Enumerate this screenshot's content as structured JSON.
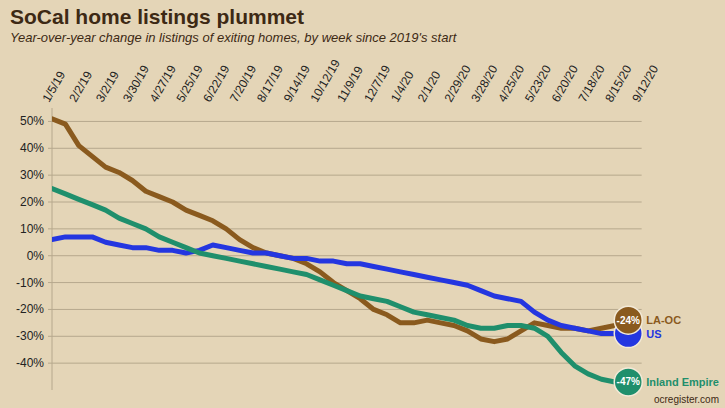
{
  "chart_data": {
    "type": "line",
    "title": "SoCal home listings plummet",
    "subtitle": "Year-over-year change in listings of exiting homes, by week since 2019's start",
    "source": "ocregister.com",
    "categories": [
      "1/5/19",
      null,
      "2/2/19",
      null,
      "3/2/19",
      null,
      "3/30/19",
      null,
      "4/27/19",
      null,
      "5/25/19",
      null,
      "6/22/19",
      null,
      "7/20/19",
      null,
      "8/17/19",
      null,
      "9/14/19",
      null,
      "10/12/19",
      null,
      "11/9/19",
      null,
      "12/7/19",
      null,
      "1/4/20",
      null,
      "2/1/20",
      null,
      "2/29/20",
      null,
      "3/28/20",
      null,
      "4/25/20",
      null,
      "5/23/20",
      null,
      "6/20/20",
      null,
      "7/18/20",
      null,
      "8/15/20",
      null,
      "9/12/20"
    ],
    "series": [
      {
        "name": "LA-OC",
        "color": "#8a5a1e",
        "values": [
          51,
          49,
          41,
          37,
          33,
          31,
          28,
          24,
          22,
          20,
          17,
          15,
          13,
          10,
          6,
          3,
          1,
          0,
          -1,
          -3,
          -6,
          -10,
          -13,
          -16,
          -20,
          -22,
          -25,
          -25,
          -24,
          -25,
          -26,
          -28,
          -31,
          -32,
          -31,
          -28,
          -25,
          -26,
          -27,
          -27,
          -28,
          -27,
          -26,
          -24,
          null
        ],
        "value_labels": [
          null,
          null,
          null,
          null,
          null,
          null,
          null,
          null,
          null,
          null,
          null,
          null,
          null,
          null,
          null,
          null,
          null,
          null,
          null,
          null,
          null,
          null,
          null,
          null,
          null,
          null,
          null,
          null,
          null,
          null,
          null,
          null,
          null,
          null,
          null,
          null,
          null,
          null,
          null,
          null,
          null,
          null,
          null,
          "-24%",
          null
        ]
      },
      {
        "name": "US",
        "color": "#2436e0",
        "values": [
          6,
          7,
          7,
          7,
          5,
          4,
          3,
          3,
          2,
          2,
          1,
          2,
          4,
          3,
          2,
          1,
          1,
          0,
          -1,
          -1,
          -2,
          -2,
          -3,
          -3,
          -4,
          -5,
          -6,
          -7,
          -8,
          -9,
          -10,
          -11,
          -13,
          -15,
          -16,
          -17,
          -21,
          -24,
          -26,
          -27,
          -28,
          -29,
          -29,
          -29,
          null
        ]
      },
      {
        "name": "Inland Empire",
        "color": "#1f8f6c",
        "values": [
          25,
          23,
          21,
          19,
          17,
          14,
          12,
          10,
          7,
          5,
          3,
          1,
          0,
          -1,
          -2,
          -3,
          -4,
          -5,
          -6,
          -7,
          -9,
          -11,
          -13,
          -15,
          -16,
          -17,
          -19,
          -21,
          -22,
          -23,
          -24,
          -26,
          -27,
          -27,
          -26,
          -26,
          -27,
          -30,
          -36,
          -41,
          -44,
          -46,
          -47,
          -47,
          null
        ],
        "value_labels": [
          null,
          null,
          null,
          null,
          null,
          null,
          null,
          null,
          null,
          null,
          null,
          null,
          null,
          null,
          null,
          null,
          null,
          null,
          null,
          null,
          null,
          null,
          null,
          null,
          null,
          null,
          null,
          null,
          null,
          null,
          null,
          null,
          null,
          null,
          null,
          null,
          null,
          null,
          null,
          null,
          null,
          null,
          null,
          "-47%",
          null
        ]
      }
    ],
    "ylim": [
      -50,
      55
    ],
    "yticks": [
      {
        "value": -40,
        "label": "-40%"
      },
      {
        "value": -30,
        "label": "-30%"
      },
      {
        "value": -20,
        "label": "-20%"
      },
      {
        "value": -10,
        "label": "-10%"
      },
      {
        "value": 0,
        "label": "0%"
      },
      {
        "value": 10,
        "label": "10%"
      },
      {
        "value": 20,
        "label": "20%"
      },
      {
        "value": 30,
        "label": "30%"
      },
      {
        "value": 40,
        "label": "40%"
      },
      {
        "value": 50,
        "label": "50%"
      }
    ],
    "grid": true,
    "legend": "right",
    "data_labels": true
  }
}
